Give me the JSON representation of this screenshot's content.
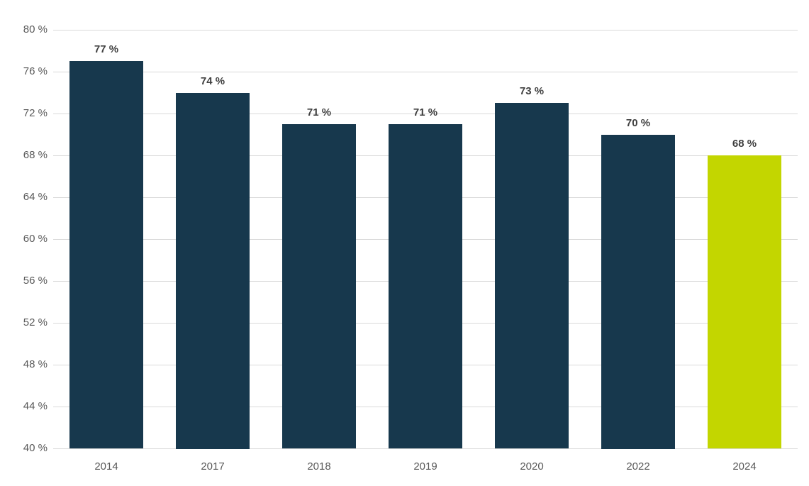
{
  "chart_data": {
    "type": "bar",
    "categories": [
      "2014",
      "2017",
      "2018",
      "2019",
      "2020",
      "2022",
      "2024"
    ],
    "values": [
      77,
      74,
      71,
      71,
      73,
      70,
      68
    ],
    "value_labels": [
      "77 %",
      "74 %",
      "71 %",
      "71 %",
      "73 %",
      "70 %",
      "68 %"
    ],
    "title": "",
    "xlabel": "",
    "ylabel": "",
    "ylim": [
      40,
      80
    ],
    "ytick_step": 4,
    "ytick_suffix": " %",
    "grid": true,
    "legend": false,
    "colors": {
      "bar": "#17384d",
      "highlight_bar": "#c3d600",
      "gridline": "#d9d9d9",
      "tick_label": "#595959",
      "value_label": "#3f3f3f",
      "background": "#ffffff"
    },
    "highlight_index": 6
  }
}
